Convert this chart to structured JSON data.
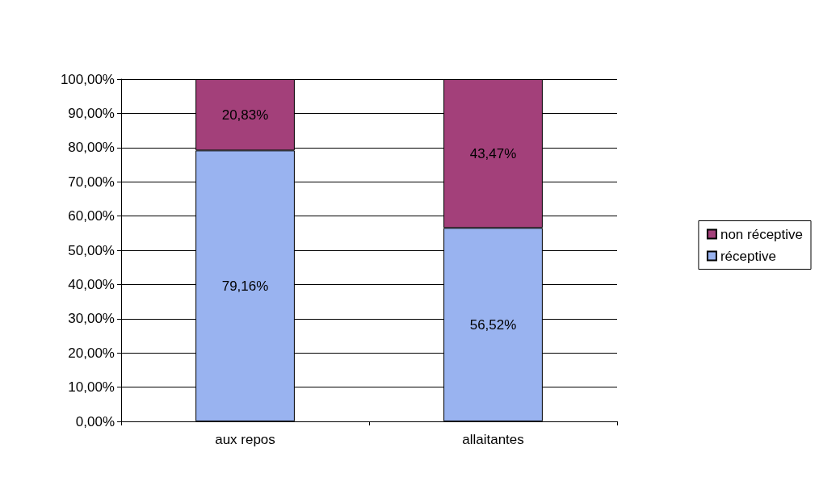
{
  "chart_data": {
    "type": "bar",
    "stacked": true,
    "categories": [
      "aux repos",
      "allaitantes"
    ],
    "series": [
      {
        "name": "réceptive",
        "color": "#99b3f0",
        "values": [
          79.16,
          56.52
        ],
        "value_labels": [
          "79,16%",
          "56,52%"
        ]
      },
      {
        "name": "non réceptive",
        "color": "#a3407a",
        "values": [
          20.83,
          43.47
        ],
        "value_labels": [
          "20,83%",
          "43,47%"
        ]
      }
    ],
    "ylim": [
      0,
      100
    ],
    "yticks": [
      {
        "value": 0,
        "label": "0,00%"
      },
      {
        "value": 10,
        "label": "10,00%"
      },
      {
        "value": 20,
        "label": "20,00%"
      },
      {
        "value": 30,
        "label": "30,00%"
      },
      {
        "value": 40,
        "label": "40,00%"
      },
      {
        "value": 50,
        "label": "50,00%"
      },
      {
        "value": 60,
        "label": "60,00%"
      },
      {
        "value": 70,
        "label": "70,00%"
      },
      {
        "value": 80,
        "label": "80,00%"
      },
      {
        "value": 90,
        "label": "90,00%"
      },
      {
        "value": 100,
        "label": "100,00%"
      }
    ],
    "grid": "y",
    "legend": "right"
  }
}
